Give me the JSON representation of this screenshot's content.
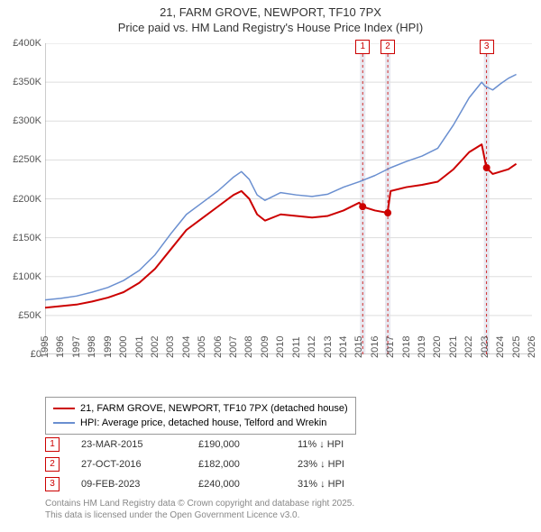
{
  "title": {
    "line1": "21, FARM GROVE, NEWPORT, TF10 7PX",
    "line2": "Price paid vs. HM Land Registry's House Price Index (HPI)"
  },
  "chart": {
    "type": "line",
    "background_color": "#ffffff",
    "grid_color": "#dddddd",
    "axis_color": "#999999",
    "x": {
      "min": 1995,
      "max": 2026,
      "ticks": [
        1995,
        1996,
        1997,
        1998,
        1999,
        2000,
        2001,
        2002,
        2003,
        2004,
        2005,
        2006,
        2007,
        2008,
        2009,
        2010,
        2011,
        2012,
        2013,
        2014,
        2015,
        2016,
        2017,
        2018,
        2019,
        2020,
        2021,
        2022,
        2023,
        2024,
        2025,
        2026
      ],
      "label_fontsize": 11
    },
    "y": {
      "min": 0,
      "max": 400000,
      "ticks": [
        0,
        50000,
        100000,
        150000,
        200000,
        250000,
        300000,
        350000,
        400000
      ],
      "tick_labels": [
        "£0",
        "£50K",
        "£100K",
        "£150K",
        "£200K",
        "£250K",
        "£300K",
        "£350K",
        "£400K"
      ],
      "label_fontsize": 11
    },
    "series": [
      {
        "name": "price_paid",
        "label": "21, FARM GROVE, NEWPORT, TF10 7PX (detached house)",
        "color": "#cc0000",
        "line_width": 2,
        "points": [
          [
            1995,
            60000
          ],
          [
            1996,
            62000
          ],
          [
            1997,
            64000
          ],
          [
            1998,
            68000
          ],
          [
            1999,
            73000
          ],
          [
            2000,
            80000
          ],
          [
            2001,
            92000
          ],
          [
            2002,
            110000
          ],
          [
            2003,
            135000
          ],
          [
            2004,
            160000
          ],
          [
            2005,
            175000
          ],
          [
            2006,
            190000
          ],
          [
            2007,
            205000
          ],
          [
            2007.5,
            210000
          ],
          [
            2008,
            200000
          ],
          [
            2008.5,
            180000
          ],
          [
            2009,
            172000
          ],
          [
            2010,
            180000
          ],
          [
            2011,
            178000
          ],
          [
            2012,
            176000
          ],
          [
            2013,
            178000
          ],
          [
            2014,
            185000
          ],
          [
            2015,
            195000
          ],
          [
            2015.2,
            190000
          ],
          [
            2016,
            185000
          ],
          [
            2016.8,
            182000
          ],
          [
            2017,
            210000
          ],
          [
            2018,
            215000
          ],
          [
            2019,
            218000
          ],
          [
            2020,
            222000
          ],
          [
            2021,
            238000
          ],
          [
            2022,
            260000
          ],
          [
            2022.8,
            270000
          ],
          [
            2023.1,
            240000
          ],
          [
            2023.5,
            232000
          ],
          [
            2024,
            235000
          ],
          [
            2024.5,
            238000
          ],
          [
            2025,
            245000
          ]
        ]
      },
      {
        "name": "hpi",
        "label": "HPI: Average price, detached house, Telford and Wrekin",
        "color": "#6a8fd0",
        "line_width": 1.5,
        "points": [
          [
            1995,
            70000
          ],
          [
            1996,
            72000
          ],
          [
            1997,
            75000
          ],
          [
            1998,
            80000
          ],
          [
            1999,
            86000
          ],
          [
            2000,
            95000
          ],
          [
            2001,
            108000
          ],
          [
            2002,
            128000
          ],
          [
            2003,
            155000
          ],
          [
            2004,
            180000
          ],
          [
            2005,
            195000
          ],
          [
            2006,
            210000
          ],
          [
            2007,
            228000
          ],
          [
            2007.5,
            235000
          ],
          [
            2008,
            225000
          ],
          [
            2008.5,
            205000
          ],
          [
            2009,
            198000
          ],
          [
            2010,
            208000
          ],
          [
            2011,
            205000
          ],
          [
            2012,
            203000
          ],
          [
            2013,
            206000
          ],
          [
            2014,
            215000
          ],
          [
            2015,
            222000
          ],
          [
            2016,
            230000
          ],
          [
            2017,
            240000
          ],
          [
            2018,
            248000
          ],
          [
            2019,
            255000
          ],
          [
            2020,
            265000
          ],
          [
            2021,
            295000
          ],
          [
            2022,
            330000
          ],
          [
            2022.8,
            350000
          ],
          [
            2023,
            345000
          ],
          [
            2023.5,
            340000
          ],
          [
            2024,
            348000
          ],
          [
            2024.5,
            355000
          ],
          [
            2025,
            360000
          ]
        ]
      }
    ],
    "sale_markers": [
      {
        "n": "1",
        "x": 2015.22,
        "y": 190000,
        "band": true
      },
      {
        "n": "2",
        "x": 2016.82,
        "y": 182000,
        "band": true
      },
      {
        "n": "3",
        "x": 2023.11,
        "y": 240000,
        "band": true
      }
    ],
    "marker_box_top_y": 395000,
    "marker_dot_color": "#cc0000",
    "marker_dot_radius": 4,
    "band_color": "#e8e8f0",
    "band_width_years": 0.35,
    "dash_color": "#cc0000"
  },
  "legend": {
    "items": [
      {
        "color": "#cc0000",
        "label": "21, FARM GROVE, NEWPORT, TF10 7PX (detached house)",
        "thick": 2
      },
      {
        "color": "#6a8fd0",
        "label": "HPI: Average price, detached house, Telford and Wrekin",
        "thick": 1.5
      }
    ]
  },
  "sales": [
    {
      "n": "1",
      "date": "23-MAR-2015",
      "price": "£190,000",
      "diff": "11% ↓ HPI"
    },
    {
      "n": "2",
      "date": "27-OCT-2016",
      "price": "£182,000",
      "diff": "23% ↓ HPI"
    },
    {
      "n": "3",
      "date": "09-FEB-2023",
      "price": "£240,000",
      "diff": "31% ↓ HPI"
    }
  ],
  "attribution": {
    "line1": "Contains HM Land Registry data © Crown copyright and database right 2025.",
    "line2": "This data is licensed under the Open Government Licence v3.0."
  }
}
